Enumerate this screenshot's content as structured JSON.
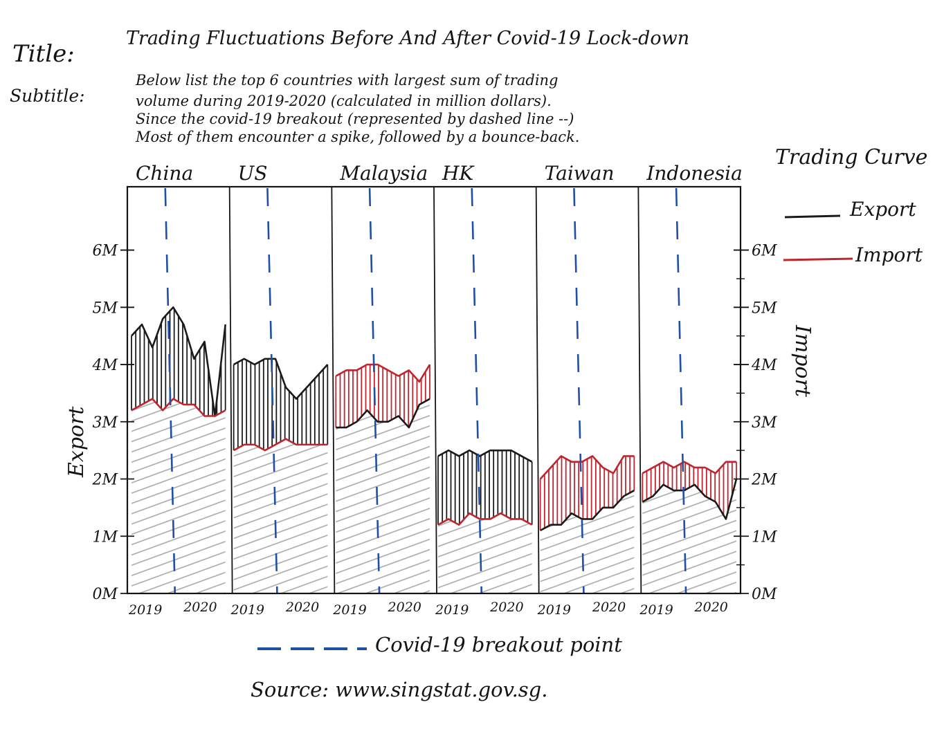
{
  "header": {
    "title_label": "Title:",
    "title": "Trading Fluctuations Before And After Covid-19 Lock-down",
    "subtitle_label": "Subtitle:",
    "subtitle_lines": [
      "Below list the top 6 countries with largest sum of trading",
      "volume during 2019-2020 (calculated in million dollars).",
      "Since the covid-19 breakout (represented by dashed line --)",
      "Most of them encounter a spike, followed by a bounce-back."
    ]
  },
  "legend": {
    "title": "Trading Curve",
    "export_label": "Export",
    "import_label": "Import",
    "breakout_label": "Covid-19 breakout point",
    "placement": "right"
  },
  "footer": {
    "source": "Source: www.singstat.gov.sg."
  },
  "colors": {
    "export": "#1a1a1a",
    "import": "#c0242c",
    "breakout": "#1f4fa6",
    "hatch": "#a8a8a8",
    "ink": "#141414"
  },
  "chart_data": {
    "type": "line",
    "title": "Trading Fluctuations Before And After Covid-19 Lock-down",
    "ylabel_left": "Export",
    "ylabel_right": "Import",
    "ylim": [
      0,
      7
    ],
    "yticks_left": [
      "0M",
      "1M",
      "2M",
      "3M",
      "4M",
      "5M",
      "6M"
    ],
    "yticks_right": [
      "0M",
      "1M",
      "2M",
      "3M",
      "4M",
      "5M",
      "6M"
    ],
    "grid": false,
    "breakout_index": 3.5,
    "panels": [
      {
        "country": "China",
        "x_ticks": [
          "2019",
          "2020"
        ],
        "export": [
          4.5,
          4.7,
          4.3,
          4.8,
          5.0,
          4.7,
          4.1,
          4.4,
          3.1,
          4.7
        ],
        "import": [
          3.2,
          3.3,
          3.4,
          3.2,
          3.4,
          3.3,
          3.3,
          3.1,
          3.1,
          3.2
        ]
      },
      {
        "country": "US",
        "x_ticks": [
          "2019",
          "2020"
        ],
        "export": [
          4.0,
          4.1,
          4.0,
          4.1,
          4.1,
          3.6,
          3.4,
          3.6,
          3.8,
          4.0
        ],
        "import": [
          2.5,
          2.6,
          2.6,
          2.5,
          2.6,
          2.7,
          2.6,
          2.6,
          2.6,
          2.6
        ]
      },
      {
        "country": "Malaysia",
        "x_ticks": [
          "2019",
          "2020"
        ],
        "export": [
          2.9,
          2.9,
          3.0,
          3.2,
          3.0,
          3.0,
          3.1,
          2.9,
          3.3,
          3.4
        ],
        "import": [
          3.8,
          3.9,
          3.9,
          4.0,
          4.0,
          3.9,
          3.8,
          3.9,
          3.7,
          4.0
        ]
      },
      {
        "country": "HK",
        "x_ticks": [
          "2019",
          "2020"
        ],
        "export": [
          2.4,
          2.5,
          2.4,
          2.5,
          2.4,
          2.5,
          2.5,
          2.5,
          2.4,
          2.3
        ],
        "import": [
          1.2,
          1.3,
          1.2,
          1.4,
          1.3,
          1.3,
          1.4,
          1.3,
          1.3,
          1.2
        ]
      },
      {
        "country": "Taiwan",
        "x_ticks": [
          "2019",
          "2020"
        ],
        "export": [
          1.1,
          1.2,
          1.2,
          1.4,
          1.3,
          1.3,
          1.5,
          1.5,
          1.7,
          1.8
        ],
        "import": [
          2.0,
          2.2,
          2.4,
          2.3,
          2.3,
          2.4,
          2.2,
          2.1,
          2.4,
          2.4
        ]
      },
      {
        "country": "Indonesia",
        "x_ticks": [
          "2019",
          "2020"
        ],
        "export": [
          1.6,
          1.7,
          1.9,
          1.8,
          1.8,
          1.9,
          1.7,
          1.6,
          1.3,
          2.0
        ],
        "import": [
          2.1,
          2.2,
          2.3,
          2.2,
          2.3,
          2.2,
          2.2,
          2.1,
          2.3,
          2.3
        ]
      }
    ]
  }
}
